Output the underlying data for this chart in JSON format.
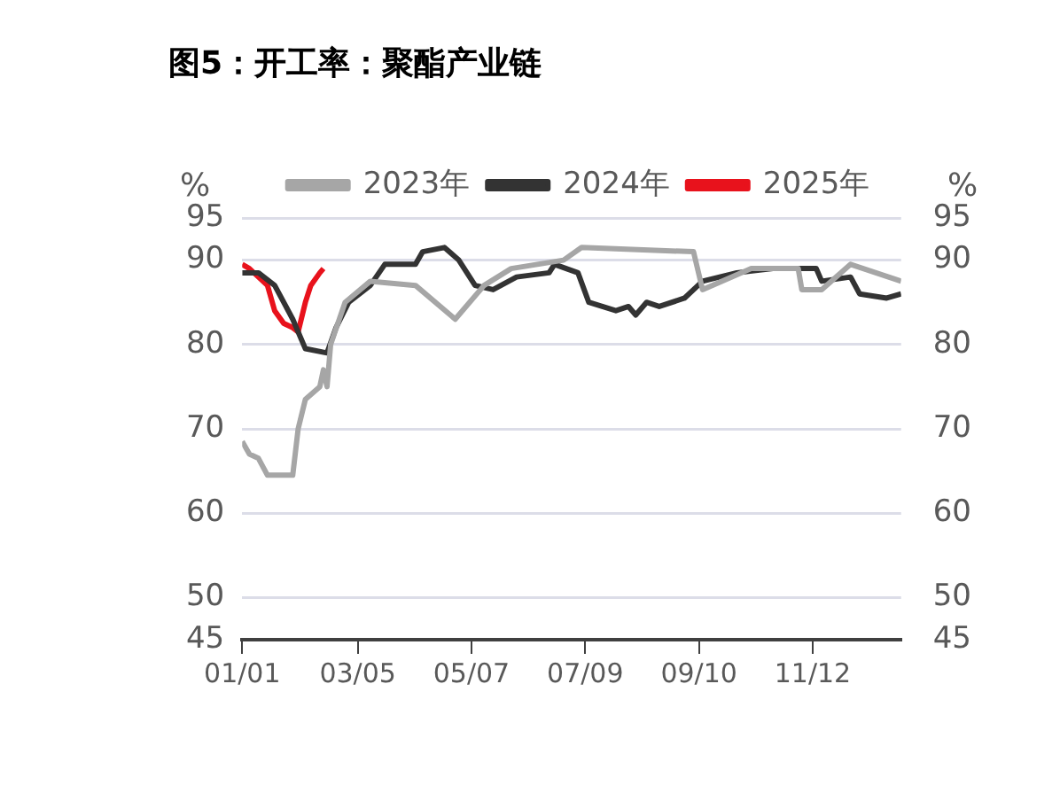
{
  "chart_data": {
    "type": "line",
    "title": "图5：开工率：聚酯产业链",
    "ylabel": "%",
    "y2label": "%",
    "xlim": [
      "--01-01",
      "--12-31"
    ],
    "xticks": [
      {
        "value": "--01-01",
        "label": "01/01"
      },
      {
        "value": "--03-05",
        "label": "03/05"
      },
      {
        "value": "--05-07",
        "label": "05/07"
      },
      {
        "value": "--07-09",
        "label": "07/09"
      },
      {
        "value": "--09-10",
        "label": "09/10"
      },
      {
        "value": "--11-12",
        "label": "11/12"
      }
    ],
    "ylim": [
      45,
      95
    ],
    "yticks": [
      45,
      50,
      60,
      70,
      80,
      90,
      95
    ],
    "y2lim": [
      45,
      95
    ],
    "y2ticks": [
      45,
      50,
      60,
      70,
      80,
      90,
      95
    ],
    "grid": "y",
    "legend": "top",
    "marker": "none",
    "line_style": "solid",
    "series": [
      {
        "name": "2023年",
        "color": "#a6a6a6",
        "x": [
          "--01-01",
          "--01-05",
          "--01-10",
          "--01-15",
          "--01-29",
          "--02-01",
          "--02-05",
          "--02-13",
          "--02-15",
          "--02-17",
          "--02-19",
          "--02-27",
          "--03-12",
          "--04-06",
          "--04-28",
          "--05-14",
          "--05-29",
          "--06-27",
          "--07-07",
          "--09-07",
          "--09-12",
          "--10-09",
          "--11-04",
          "--11-06",
          "--11-17",
          "--12-03",
          "--12-31"
        ],
        "values": [
          68.5,
          67,
          66.5,
          64.5,
          64.5,
          70,
          73.5,
          75,
          77,
          75,
          80,
          85,
          87.5,
          87,
          83,
          87,
          89,
          90,
          91.5,
          91,
          86.5,
          89,
          89,
          86.5,
          86.5,
          89.5,
          87.5
        ]
      },
      {
        "name": "2024年",
        "color": "#333333",
        "x": [
          "--01-01",
          "--01-10",
          "--01-19",
          "--01-24",
          "--01-29",
          "--02-05",
          "--02-17",
          "--02-22",
          "--02-29",
          "--03-12",
          "--03-20",
          "--04-06",
          "--04-10",
          "--04-22",
          "--04-30",
          "--05-09",
          "--05-19",
          "--06-01",
          "--06-19",
          "--06-22",
          "--07-05",
          "--07-11",
          "--07-26",
          "--08-02",
          "--08-06",
          "--08-12",
          "--08-19",
          "--09-02",
          "--09-12",
          "--10-01",
          "--10-21",
          "--11-14",
          "--11-17",
          "--12-03",
          "--12-08",
          "--12-23",
          "--12-31"
        ],
        "values": [
          88.5,
          88.5,
          87,
          85,
          83,
          79.5,
          79,
          82,
          85,
          87,
          89.5,
          89.5,
          91,
          91.5,
          90,
          87,
          86.5,
          88,
          88.5,
          89.5,
          88.5,
          85,
          84,
          84.5,
          83.5,
          85,
          84.5,
          85.5,
          87.5,
          88.5,
          89,
          89,
          87.5,
          88,
          86,
          85.5,
          86
        ]
      },
      {
        "name": "2025年",
        "color": "#e8121c",
        "x": [
          "--01-01",
          "--01-05",
          "--01-15",
          "--01-19",
          "--01-24",
          "--01-29",
          "--02-01",
          "--02-05",
          "--02-08",
          "--02-13",
          "--02-15"
        ],
        "values": [
          89.5,
          89,
          87,
          84,
          82.5,
          82,
          81.5,
          85,
          87,
          88.5,
          89
        ]
      }
    ]
  }
}
